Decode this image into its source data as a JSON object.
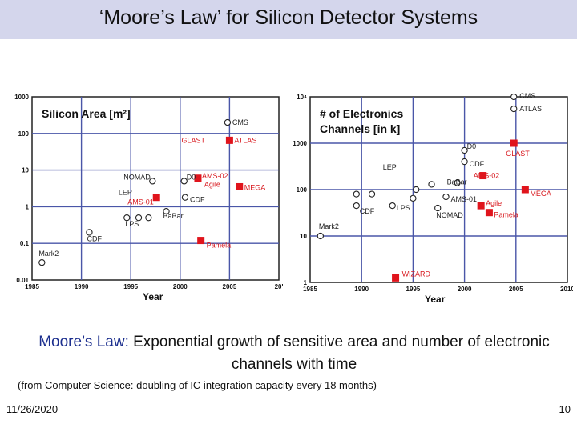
{
  "slide": {
    "title": "‘Moore’s Law’ for Silicon Detector Systems",
    "caption_lead": "Moore’s Law:",
    "caption_rest": " Exponential growth of sensitive area and number of electronic channels with time",
    "footnote": "(from Computer Science: doubling of IC integration capacity every 18 months)",
    "date": "11/26/2020",
    "page_number": "10"
  },
  "colors": {
    "title_bar": "#d4d6ec",
    "accent_text": "#1c2f8e",
    "marker_red": "#e0141c",
    "label_red": "#d8181e",
    "grid": "#4a56a8"
  },
  "chart_data": [
    {
      "type": "scatter",
      "title": "Silicon Area [m²]",
      "xlabel": "Year",
      "ylabel": "",
      "yscale": "log",
      "xlim": [
        1985,
        2010
      ],
      "ylim": [
        0.01,
        1000
      ],
      "x_ticks": [
        "1985",
        "1990",
        "1995",
        "2000",
        "2005",
        "20'"
      ],
      "y_ticks": [
        "1000",
        "100",
        "10",
        "1",
        "0.1",
        "0.01"
      ],
      "points": [
        {
          "label": "CMS",
          "x": 2004.8,
          "y": 200,
          "marker": "circle",
          "color": "black"
        },
        {
          "label": "ATLAS",
          "x": 2005.0,
          "y": 65,
          "marker": "square",
          "color": "red"
        },
        {
          "label": "GLAST",
          "x": 2004.6,
          "y": 65,
          "marker": "none",
          "color": "red"
        },
        {
          "label": "AMS-02",
          "x": 2001.8,
          "y": 6,
          "marker": "square",
          "color": "red"
        },
        {
          "label": "Agile",
          "x": 2002.6,
          "y": 3.5,
          "marker": "none",
          "color": "red"
        },
        {
          "label": "MEGA",
          "x": 2006.0,
          "y": 3.5,
          "marker": "square",
          "color": "red"
        },
        {
          "label": "D0",
          "x": 2000.4,
          "y": 5,
          "marker": "circle",
          "color": "black"
        },
        {
          "label": "NOMAD",
          "x": 1997.2,
          "y": 5,
          "marker": "circle",
          "color": "black"
        },
        {
          "label": "AMS-01",
          "x": 1997.6,
          "y": 1.8,
          "marker": "square",
          "color": "red"
        },
        {
          "label": "LEP",
          "x": 1997.0,
          "y": 2.2,
          "marker": "none",
          "color": "black"
        },
        {
          "label": "CDF",
          "x": 2000.5,
          "y": 1.8,
          "marker": "circle",
          "color": "black"
        },
        {
          "label": "BaBar",
          "x": 1998.6,
          "y": 0.75,
          "marker": "circle",
          "color": "black"
        },
        {
          "label": "LPS",
          "x": 1994.6,
          "y": 0.5,
          "marker": "circle",
          "color": "black"
        },
        {
          "label": "",
          "x": 1995.8,
          "y": 0.5,
          "marker": "circle",
          "color": "black"
        },
        {
          "label": "",
          "x": 1996.8,
          "y": 0.5,
          "marker": "circle",
          "color": "black"
        },
        {
          "label": "Pamela",
          "x": 2002.1,
          "y": 0.12,
          "marker": "square",
          "color": "red"
        },
        {
          "label": "CDF",
          "x": 1990.8,
          "y": 0.2,
          "marker": "circle",
          "color": "black"
        },
        {
          "label": "Mark2",
          "x": 1986.0,
          "y": 0.03,
          "marker": "circle",
          "color": "black"
        }
      ]
    },
    {
      "type": "scatter",
      "title": "# of Electronics Channels [in k]",
      "xlabel": "Year",
      "ylabel": "",
      "yscale": "log",
      "xlim": [
        1985,
        2010
      ],
      "ylim": [
        1,
        10000
      ],
      "x_ticks": [
        "1985",
        "1990",
        "1995",
        "2000",
        "2005",
        "2010"
      ],
      "y_ticks": [
        "10⁴",
        "1000",
        "100",
        "10",
        "1"
      ],
      "points": [
        {
          "label": "CMS",
          "x": 2004.8,
          "y": 10000,
          "marker": "circle",
          "color": "black"
        },
        {
          "label": "ATLAS",
          "x": 2004.8,
          "y": 5500,
          "marker": "circle",
          "color": "black"
        },
        {
          "label": "GLAST",
          "x": 2004.8,
          "y": 1000,
          "marker": "square",
          "color": "red"
        },
        {
          "label": "D0",
          "x": 2000.0,
          "y": 700,
          "marker": "circle",
          "color": "black"
        },
        {
          "label": "CDF",
          "x": 2000.0,
          "y": 400,
          "marker": "circle",
          "color": "black"
        },
        {
          "label": "LEP",
          "x": 1993.0,
          "y": 230,
          "marker": "none",
          "color": "black"
        },
        {
          "label": "AMS-02",
          "x": 2001.8,
          "y": 200,
          "marker": "square",
          "color": "red"
        },
        {
          "label": "BaBar",
          "x": 1999.3,
          "y": 140,
          "marker": "circle",
          "color": "black"
        },
        {
          "label": "",
          "x": 1996.8,
          "y": 130,
          "marker": "circle",
          "color": "black"
        },
        {
          "label": "MEGA",
          "x": 2005.9,
          "y": 100,
          "marker": "square",
          "color": "red"
        },
        {
          "label": "",
          "x": 1995.3,
          "y": 100,
          "marker": "circle",
          "color": "black"
        },
        {
          "label": "",
          "x": 1989.5,
          "y": 80,
          "marker": "circle",
          "color": "black"
        },
        {
          "label": "",
          "x": 1991.0,
          "y": 80,
          "marker": "circle",
          "color": "black"
        },
        {
          "label": "",
          "x": 1995.0,
          "y": 65,
          "marker": "circle",
          "color": "black"
        },
        {
          "label": "AMS-01",
          "x": 1998.2,
          "y": 70,
          "marker": "circle",
          "color": "black"
        },
        {
          "label": "Agile",
          "x": 2001.6,
          "y": 45,
          "marker": "square",
          "color": "red"
        },
        {
          "label": "Pamela",
          "x": 2002.4,
          "y": 32,
          "marker": "square",
          "color": "red"
        },
        {
          "label": "CDF",
          "x": 1989.5,
          "y": 45,
          "marker": "circle",
          "color": "black"
        },
        {
          "label": "LPS",
          "x": 1993.0,
          "y": 45,
          "marker": "circle",
          "color": "black"
        },
        {
          "label": "NOMAD",
          "x": 1997.4,
          "y": 40,
          "marker": "circle",
          "color": "black"
        },
        {
          "label": "Mark2",
          "x": 1986.0,
          "y": 10,
          "marker": "circle",
          "color": "black"
        },
        {
          "label": "WIZARD",
          "x": 1993.3,
          "y": 1.25,
          "marker": "square",
          "color": "red"
        }
      ]
    }
  ]
}
